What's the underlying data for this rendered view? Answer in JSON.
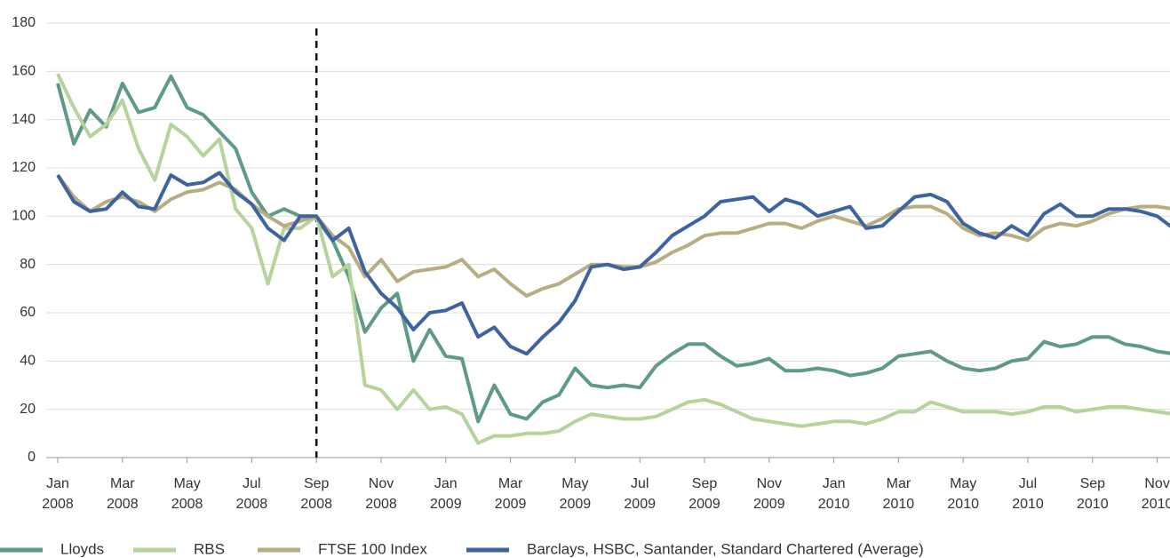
{
  "chart_data": {
    "type": "line",
    "categories": [
      "Jan 2008",
      null,
      null,
      null,
      "Mar 2008",
      null,
      null,
      null,
      "May 2008",
      null,
      null,
      null,
      "Jul 2008",
      null,
      null,
      null,
      "Sep 2008",
      null,
      null,
      null,
      "Nov 2008",
      null,
      null,
      null,
      "Jan 2009",
      null,
      null,
      null,
      "Mar 2009",
      null,
      null,
      null,
      "May 2009",
      null,
      null,
      null,
      "Jul 2009",
      null,
      null,
      null,
      "Sep 2009",
      null,
      null,
      null,
      "Nov 2009",
      null,
      null,
      null,
      "Jan 2010",
      null,
      null,
      null,
      "Mar 2010",
      null,
      null,
      null,
      "May 2010",
      null,
      null,
      null,
      "Jul 2010",
      null,
      null,
      null,
      "Sep 2010",
      null,
      null,
      null,
      "Nov 2010",
      null
    ],
    "series": [
      {
        "name": "Lloyds",
        "color": "#5e9a85",
        "values": [
          155,
          130,
          144,
          137,
          155,
          143,
          145,
          158,
          145,
          142,
          135,
          128,
          110,
          100,
          103,
          100,
          99,
          90,
          75,
          52,
          62,
          68,
          40,
          53,
          42,
          41,
          15,
          30,
          18,
          16,
          23,
          26,
          37,
          30,
          29,
          30,
          29,
          38,
          43,
          47,
          47,
          42,
          38,
          39,
          41,
          36,
          36,
          37,
          36,
          34,
          35,
          37,
          42,
          43,
          44,
          40,
          37,
          36,
          37,
          40,
          41,
          48,
          46,
          47,
          50,
          50,
          47,
          46,
          44,
          43
        ]
      },
      {
        "name": "RBS",
        "color": "#b5d39a",
        "values": [
          159,
          145,
          133,
          138,
          148,
          128,
          115,
          138,
          133,
          125,
          132,
          103,
          95,
          72,
          95,
          95,
          100,
          75,
          80,
          30,
          28,
          20,
          28,
          20,
          21,
          18,
          6,
          9,
          9,
          10,
          10,
          11,
          15,
          18,
          17,
          16,
          16,
          17,
          20,
          23,
          24,
          22,
          19,
          16,
          15,
          14,
          13,
          14,
          15,
          15,
          14,
          16,
          19,
          19,
          23,
          21,
          19,
          19,
          19,
          18,
          19,
          21,
          21,
          19,
          20,
          21,
          21,
          20,
          19,
          18
        ]
      },
      {
        "name": "FTSE 100 Index",
        "color": "#b8ad82",
        "values": [
          117,
          108,
          102,
          106,
          108,
          106,
          102,
          107,
          110,
          111,
          114,
          111,
          105,
          100,
          96,
          98,
          100,
          92,
          87,
          75,
          82,
          73,
          77,
          78,
          79,
          82,
          75,
          78,
          72,
          67,
          70,
          72,
          76,
          80,
          80,
          79,
          79,
          81,
          85,
          88,
          92,
          93,
          93,
          95,
          97,
          97,
          95,
          98,
          100,
          98,
          96,
          99,
          103,
          104,
          104,
          101,
          95,
          92,
          93,
          92,
          90,
          95,
          97,
          96,
          98,
          101,
          103,
          104,
          104,
          103
        ]
      },
      {
        "name": "Barclays, HSBC, Santander, Standard Chartered (Average)",
        "color": "#3e64a0",
        "values": [
          117,
          106,
          102,
          103,
          110,
          104,
          103,
          117,
          113,
          114,
          118,
          110,
          105,
          95,
          90,
          100,
          100,
          90,
          95,
          77,
          68,
          62,
          53,
          60,
          61,
          64,
          50,
          54,
          46,
          43,
          50,
          56,
          65,
          79,
          80,
          78,
          79,
          85,
          92,
          96,
          100,
          106,
          107,
          108,
          102,
          107,
          105,
          100,
          102,
          104,
          95,
          96,
          102,
          108,
          109,
          106,
          97,
          93,
          91,
          96,
          92,
          101,
          105,
          100,
          100,
          103,
          103,
          102,
          100,
          95
        ]
      }
    ],
    "ylim": [
      0,
      180
    ],
    "yticks": [
      0,
      20,
      40,
      60,
      80,
      100,
      120,
      140,
      160,
      180
    ],
    "grid": true
  }
}
